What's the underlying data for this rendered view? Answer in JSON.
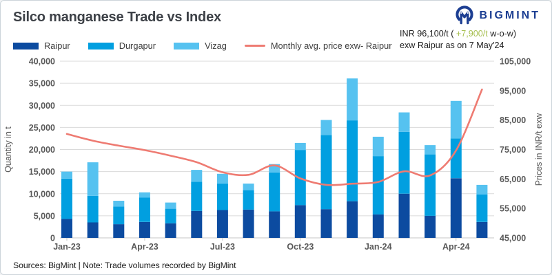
{
  "header": {
    "title": "Silco manganese Trade vs Index",
    "brand": "BIGMINT"
  },
  "annotation": {
    "prefix": "INR 96,100/t ( ",
    "change": "+7,900/t",
    "suffix": " w-o-w)",
    "line2": "exw Raipur as on 7 May'24",
    "change_color": "#a6bf4f"
  },
  "footer": {
    "text": "Sources: BigMint | Note: Trade volumes recorded by BigMint"
  },
  "colors": {
    "brand_navy": "#1c3e92",
    "grid": "#dadada",
    "axis_text": "#595959"
  },
  "chart_data": {
    "type": "bar",
    "subtype": "stacked bars with overlaid line on secondary axis",
    "categories": [
      "Jan-23",
      "Feb-23",
      "Mar-23",
      "Apr-23",
      "May-23",
      "Jun-23",
      "Jul-23",
      "Aug-23",
      "Sep-23",
      "Oct-23",
      "Nov-23",
      "Dec-23",
      "Jan-24",
      "Feb-24",
      "Mar-24",
      "Apr-24",
      "May-24"
    ],
    "x_tick_labels": [
      "Jan-23",
      "Apr-23",
      "Jul-23",
      "Oct-23",
      "Jan-24",
      "Apr-24"
    ],
    "stacked": true,
    "grid": true,
    "legend_position": "top-left",
    "series": [
      {
        "name": "Raipur",
        "type": "bar",
        "axis": "left",
        "color": "#0c4ba0",
        "values": [
          4300,
          3500,
          3100,
          3600,
          3300,
          6100,
          6300,
          6400,
          6000,
          7400,
          6500,
          8300,
          5300,
          10000,
          5000,
          13500,
          3600
        ]
      },
      {
        "name": "Durgapur",
        "type": "bar",
        "axis": "left",
        "color": "#019fe0",
        "values": [
          9100,
          6000,
          4000,
          5500,
          3300,
          6600,
          6000,
          4400,
          8800,
          12500,
          16800,
          18300,
          13200,
          14000,
          13900,
          9000,
          6200
        ]
      },
      {
        "name": "Vizag",
        "type": "bar",
        "axis": "left",
        "color": "#56c2f0",
        "values": [
          1600,
          7600,
          1300,
          1200,
          1400,
          2700,
          2200,
          1500,
          1900,
          1600,
          3400,
          9500,
          4400,
          4400,
          2100,
          8500,
          2200
        ]
      },
      {
        "name": "Monthly avg. price exw- Raipur",
        "type": "line",
        "axis": "right",
        "color": "#ee7b72",
        "values": [
          80300,
          78000,
          76300,
          74800,
          72900,
          70700,
          67300,
          66400,
          69600,
          65200,
          63000,
          63400,
          64000,
          67600,
          66200,
          74700,
          95400
        ]
      }
    ],
    "left_axis": {
      "label": "Quantity in t",
      "min": 0,
      "max": 40000,
      "step": 5000
    },
    "right_axis": {
      "label": "Prices in INR/t exw",
      "min": 45000,
      "max": 105000,
      "step": 10000
    }
  }
}
